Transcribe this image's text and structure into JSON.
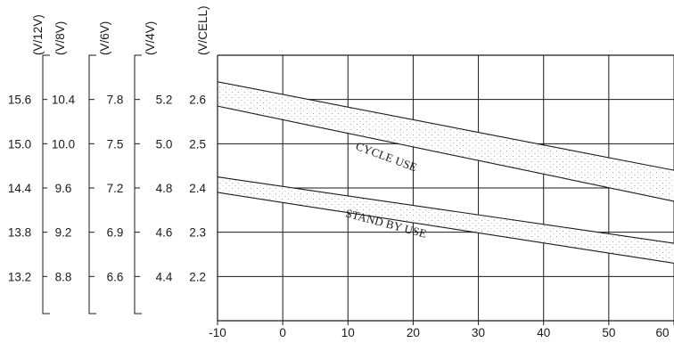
{
  "chart_data": {
    "type": "line",
    "x": [
      -10,
      60
    ],
    "xlim": [
      -10,
      60
    ],
    "ylim": [
      2.1,
      2.7
    ],
    "x_ticks": [
      "-10",
      "0",
      "10",
      "20",
      "30",
      "40",
      "50",
      "60"
    ],
    "grid": true,
    "y_axes": [
      {
        "unit": "(V/12V)",
        "ticks": [
          "15.6",
          "15.0",
          "14.4",
          "13.8",
          "13.2"
        ]
      },
      {
        "unit": "(V/8V)",
        "ticks": [
          "10.4",
          "10.0",
          "9.6",
          "9.2",
          "8.8"
        ]
      },
      {
        "unit": "(V/6V)",
        "ticks": [
          "7.8",
          "7.5",
          "7.2",
          "6.9",
          "6.6"
        ]
      },
      {
        "unit": "(V/4V)",
        "ticks": [
          "5.2",
          "5.0",
          "4.8",
          "4.6",
          "4.4"
        ]
      },
      {
        "unit": "(V/CELL)",
        "ticks": [
          "2.6",
          "2.5",
          "2.4",
          "2.3",
          "2.2"
        ]
      }
    ],
    "series": [
      {
        "name": "CYCLE USE",
        "upper": [
          2.64,
          2.44
        ],
        "lower": [
          2.585,
          2.37
        ],
        "fill": "#ffffff"
      },
      {
        "name": "STAND BY USE",
        "upper": [
          2.425,
          2.275
        ],
        "lower": [
          2.39,
          2.23
        ],
        "fill": "#ffffff"
      }
    ],
    "colors": {
      "line": "#1a1a1a",
      "dots": "#8a8a8a"
    }
  }
}
